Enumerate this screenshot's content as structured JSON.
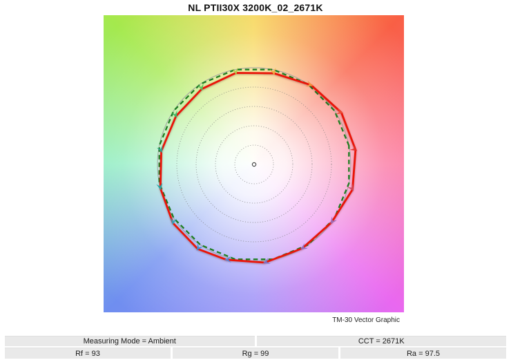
{
  "page": {
    "title": "NL PTII30X 3200K_02_2671K",
    "caption": "TM-30 Vector Graphic"
  },
  "info_bar": {
    "row1": [
      {
        "label": "Measuring Mode = Ambient"
      },
      {
        "label": "CCT = 2671K"
      }
    ],
    "row2": [
      {
        "label": "Rf = 93"
      },
      {
        "label": "Rg = 99"
      },
      {
        "label": "Ra = 97.5"
      }
    ]
  },
  "chart_data": {
    "type": "line",
    "subtype": "tm30_color_vector_graphic",
    "title": "NL PTII30X 3200K_02_2671K",
    "caption": "TM-30 Vector Graphic",
    "readouts": {
      "measuring_mode": "Ambient",
      "cct": "2671K",
      "rf": 93,
      "rg": 99,
      "ra": 97.5
    },
    "reference_radius": 1.0,
    "grid_rings": [
      0.2,
      0.4,
      0.6,
      0.8
    ],
    "legend": "none",
    "colors": {
      "test_polygon": "#ea1408",
      "reference_polygon": "#1d7d21",
      "reference_circle": "#a0a0a0",
      "grid": "#777777",
      "center_marker_stroke": "#444444"
    },
    "bins": [
      {
        "bin": 1,
        "hue_angle_deg": 11.25,
        "radius_ratio": 1.06,
        "hue_shift_deg": -3,
        "arrow_color": "#e42f28"
      },
      {
        "bin": 2,
        "hue_angle_deg": 33.75,
        "radius_ratio": 1.05,
        "hue_shift_deg": -3,
        "arrow_color": "#ed4b34"
      },
      {
        "bin": 3,
        "hue_angle_deg": 56.25,
        "radius_ratio": 1.01,
        "hue_shift_deg": -2,
        "arrow_color": "#f6953f"
      },
      {
        "bin": 4,
        "hue_angle_deg": 78.75,
        "radius_ratio": 0.965,
        "hue_shift_deg": -1,
        "arrow_color": "#f0b03f"
      },
      {
        "bin": 5,
        "hue_angle_deg": 101.25,
        "radius_ratio": 0.965,
        "hue_shift_deg": 0,
        "arrow_color": "#b5cd4f"
      },
      {
        "bin": 6,
        "hue_angle_deg": 123.75,
        "radius_ratio": 0.95,
        "hue_shift_deg": 1,
        "arrow_color": "#5cc25a"
      },
      {
        "bin": 7,
        "hue_angle_deg": 146.25,
        "radius_ratio": 0.95,
        "hue_shift_deg": 2,
        "arrow_color": "#3eb969"
      },
      {
        "bin": 8,
        "hue_angle_deg": 168.75,
        "radius_ratio": 0.97,
        "hue_shift_deg": 3,
        "arrow_color": "#2aa695"
      },
      {
        "bin": 9,
        "hue_angle_deg": 191.25,
        "radius_ratio": 1.0,
        "hue_shift_deg": 3,
        "arrow_color": "#23a3a3"
      },
      {
        "bin": 10,
        "hue_angle_deg": 213.75,
        "radius_ratio": 1.035,
        "hue_shift_deg": 2,
        "arrow_color": "#2fa3bb"
      },
      {
        "bin": 11,
        "hue_angle_deg": 236.25,
        "radius_ratio": 1.05,
        "hue_shift_deg": 0,
        "arrow_color": "#3f8ed2"
      },
      {
        "bin": 12,
        "hue_angle_deg": 258.75,
        "radius_ratio": 1.025,
        "hue_shift_deg": -5,
        "arrow_color": "#5b85d6"
      },
      {
        "bin": 13,
        "hue_angle_deg": 281.25,
        "radius_ratio": 1.02,
        "hue_shift_deg": -5,
        "arrow_color": "#7a74c8"
      },
      {
        "bin": 14,
        "hue_angle_deg": 303.75,
        "radius_ratio": 1.0,
        "hue_shift_deg": -4,
        "arrow_color": "#8f6fc0"
      },
      {
        "bin": 15,
        "hue_angle_deg": 326.25,
        "radius_ratio": 1.0,
        "hue_shift_deg": -3,
        "arrow_color": "#9c6bb8"
      },
      {
        "bin": 16,
        "hue_angle_deg": 348.75,
        "radius_ratio": 1.05,
        "hue_shift_deg": -3,
        "arrow_color": "#cf4a5e"
      }
    ],
    "background_hue_wheel": {
      "angles_deg": [
        0,
        45,
        90,
        135,
        180,
        225,
        270,
        315,
        360
      ],
      "colors": [
        "#f6d44f",
        "#f95f45",
        "#fb78a2",
        "#e968f0",
        "#9a8cf7",
        "#6f8ef0",
        "#90edc2",
        "#a4e94d",
        "#f6d44f"
      ]
    }
  }
}
